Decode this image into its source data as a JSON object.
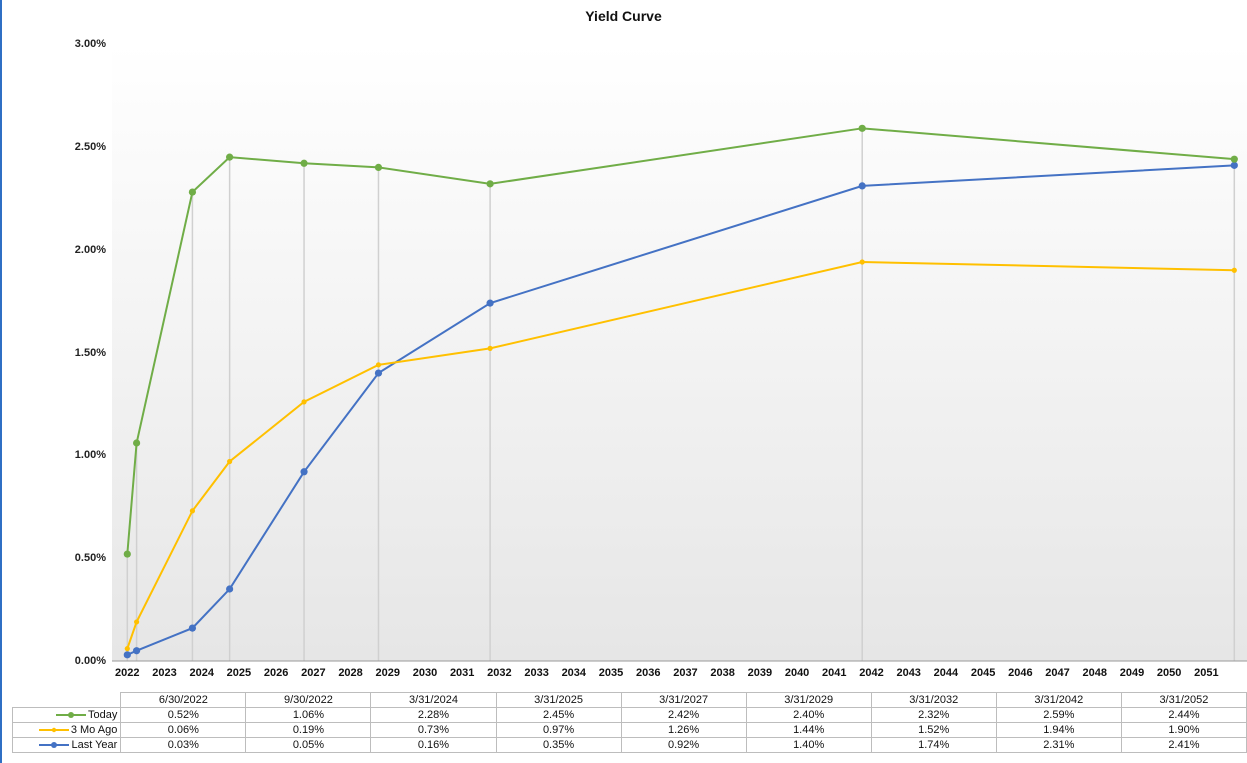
{
  "chart_data": {
    "type": "line",
    "title": "Yield Curve",
    "xlabel": "",
    "ylabel": "",
    "ylim": [
      0,
      0.03
    ],
    "y_ticks": [
      "0.00%",
      "0.50%",
      "1.00%",
      "1.50%",
      "2.00%",
      "2.50%",
      "3.00%"
    ],
    "xlim": [
      2022.25,
      2052.0
    ],
    "x_ticks": [
      "2022",
      "2023",
      "2024",
      "2025",
      "2026",
      "2027",
      "2028",
      "2029",
      "2030",
      "2031",
      "2032",
      "2033",
      "2034",
      "2035",
      "2036",
      "2037",
      "2038",
      "2039",
      "2040",
      "2041",
      "2042",
      "2043",
      "2044",
      "2045",
      "2046",
      "2047",
      "2048",
      "2049",
      "2050",
      "2051"
    ],
    "categories": [
      "6/30/2022",
      "9/30/2022",
      "3/31/2024",
      "3/31/2025",
      "3/31/2027",
      "3/31/2029",
      "3/31/2032",
      "3/31/2042",
      "3/31/2052"
    ],
    "x_values": [
      2022.5,
      2022.75,
      2024.25,
      2025.25,
      2027.25,
      2029.25,
      2032.25,
      2042.25,
      2052.25
    ],
    "series": [
      {
        "name": "Today",
        "color": "#70ad47",
        "values": [
          0.0052,
          0.0106,
          0.0228,
          0.0245,
          0.0242,
          0.024,
          0.0232,
          0.0259,
          0.0244
        ],
        "labels": [
          "0.52%",
          "1.06%",
          "2.28%",
          "2.45%",
          "2.42%",
          "2.40%",
          "2.32%",
          "2.59%",
          "2.44%"
        ]
      },
      {
        "name": "3 Mo Ago",
        "color": "#ffc000",
        "values": [
          0.0006,
          0.0019,
          0.0073,
          0.0097,
          0.0126,
          0.0144,
          0.0152,
          0.0194,
          0.019
        ],
        "labels": [
          "0.06%",
          "0.19%",
          "0.73%",
          "0.97%",
          "1.26%",
          "1.44%",
          "1.52%",
          "1.94%",
          "1.90%"
        ]
      },
      {
        "name": "Last Year",
        "color": "#4472c4",
        "values": [
          0.0003,
          0.0005,
          0.0016,
          0.0035,
          0.0092,
          0.014,
          0.0174,
          0.0231,
          0.0241
        ],
        "labels": [
          "0.03%",
          "0.05%",
          "0.16%",
          "0.35%",
          "0.92%",
          "1.40%",
          "1.74%",
          "2.31%",
          "2.41%"
        ]
      }
    ],
    "grid": false,
    "legend": "data-table"
  }
}
